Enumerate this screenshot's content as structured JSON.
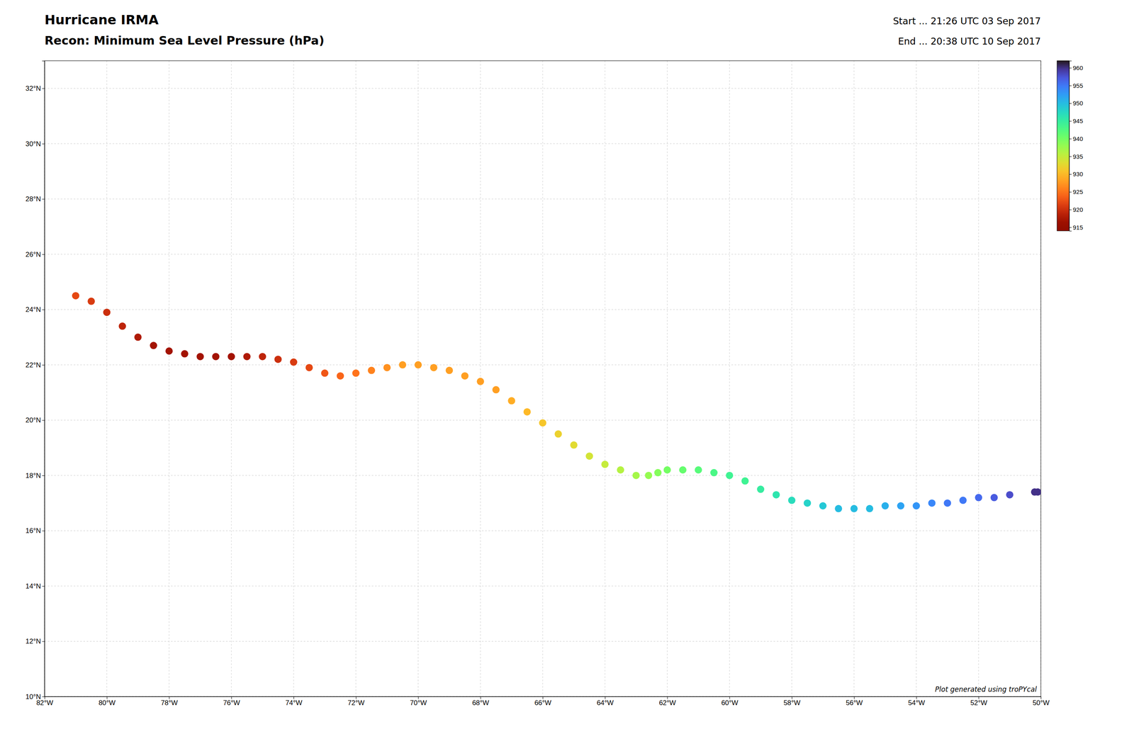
{
  "chart_data": {
    "type": "scatter",
    "title": "Hurricane IRMA",
    "subtitle": "Recon: Minimum Sea Level Pressure (hPa)",
    "annotations": [
      "Start ... 21:26 UTC 03 Sep 2017",
      "End ... 20:38 UTC 10 Sep 2017",
      "Plot generated using troPYcal"
    ],
    "x": [
      -50.1,
      -50.2,
      -51.0,
      -51.5,
      -52.0,
      -52.5,
      -53.0,
      -53.5,
      -54.0,
      -54.5,
      -55.0,
      -55.5,
      -56.0,
      -56.5,
      -57.0,
      -57.5,
      -58.0,
      -58.5,
      -59.0,
      -59.5,
      -60.0,
      -60.5,
      -61.0,
      -61.5,
      -62.0,
      -62.3,
      -62.6,
      -63.0,
      -63.5,
      -64.0,
      -64.5,
      -65.0,
      -65.5,
      -66.0,
      -66.5,
      -67.0,
      -67.5,
      -68.0,
      -68.5,
      -69.0,
      -69.5,
      -70.0,
      -70.5,
      -71.0,
      -71.5,
      -72.0,
      -72.5,
      -73.0,
      -73.5,
      -74.0,
      -74.5,
      -75.0,
      -75.5,
      -76.0,
      -76.5,
      -77.0,
      -77.5,
      -78.0,
      -78.5,
      -79.0,
      -79.5,
      -80.0,
      -80.5,
      -81.0
    ],
    "values": [
      17.4,
      17.4,
      17.3,
      17.2,
      17.2,
      17.1,
      17.0,
      17.0,
      16.9,
      16.9,
      16.9,
      16.8,
      16.8,
      16.8,
      16.9,
      17.0,
      17.1,
      17.3,
      17.5,
      17.8,
      18.0,
      18.1,
      18.2,
      18.2,
      18.2,
      18.1,
      18.0,
      18.0,
      18.2,
      18.4,
      18.7,
      19.1,
      19.5,
      19.9,
      20.3,
      20.7,
      21.1,
      21.4,
      21.6,
      21.8,
      21.9,
      22.0,
      22.0,
      21.9,
      21.8,
      21.7,
      21.6,
      21.7,
      21.9,
      22.1,
      22.2,
      22.3,
      22.3,
      22.3,
      22.3,
      22.3,
      22.4,
      22.5,
      22.7,
      23.0,
      23.4,
      23.9,
      24.3,
      24.5
    ],
    "pressures": [
      960,
      960,
      958,
      957,
      956,
      955,
      955,
      954,
      953,
      952,
      951,
      950,
      950,
      950,
      949,
      948,
      947,
      946,
      945,
      944,
      944,
      943,
      942,
      941,
      940,
      939,
      938,
      937,
      936,
      935,
      934,
      933,
      932,
      931,
      930,
      929,
      928,
      928,
      928,
      928,
      928,
      928,
      928,
      927,
      926,
      925,
      924,
      923,
      922,
      921,
      920,
      919,
      918,
      917,
      917,
      917,
      917,
      917,
      917,
      918,
      919,
      920,
      921,
      922
    ],
    "colorbar_range": [
      914,
      962
    ],
    "colorbar_ticks": [
      915,
      920,
      925,
      930,
      935,
      940,
      945,
      950,
      955,
      960
    ],
    "xlim": [
      -82,
      -50
    ],
    "xticks": [
      {
        "value": -82,
        "label": "82°W"
      },
      {
        "value": -80,
        "label": "80°W"
      },
      {
        "value": -78,
        "label": "78°W"
      },
      {
        "value": -76,
        "label": "76°W"
      },
      {
        "value": -74,
        "label": "74°W"
      },
      {
        "value": -72,
        "label": "72°W"
      },
      {
        "value": -70,
        "label": "70°W"
      },
      {
        "value": -68,
        "label": "68°W"
      },
      {
        "value": -66,
        "label": "66°W"
      },
      {
        "value": -64,
        "label": "64°W"
      },
      {
        "value": -62,
        "label": "62°W"
      },
      {
        "value": -60,
        "label": "60°W"
      },
      {
        "value": -58,
        "label": "58°W"
      },
      {
        "value": -56,
        "label": "56°W"
      },
      {
        "value": -54,
        "label": "54°W"
      },
      {
        "value": -52,
        "label": "52°W"
      },
      {
        "value": -50,
        "label": "50°W"
      }
    ],
    "ylim": [
      10,
      33
    ],
    "yticks": [
      {
        "value": 10,
        "label": "10°N"
      },
      {
        "value": 12,
        "label": "12°N"
      },
      {
        "value": 14,
        "label": "14°N"
      },
      {
        "value": 16,
        "label": "16°N"
      },
      {
        "value": 18,
        "label": "18°N"
      },
      {
        "value": 20,
        "label": "20°N"
      },
      {
        "value": 22,
        "label": "22°N"
      },
      {
        "value": 24,
        "label": "24°N"
      },
      {
        "value": 26,
        "label": "26°N"
      },
      {
        "value": 28,
        "label": "28°N"
      },
      {
        "value": 30,
        "label": "30°N"
      },
      {
        "value": 32,
        "label": "32°N"
      }
    ],
    "grid": true
  }
}
